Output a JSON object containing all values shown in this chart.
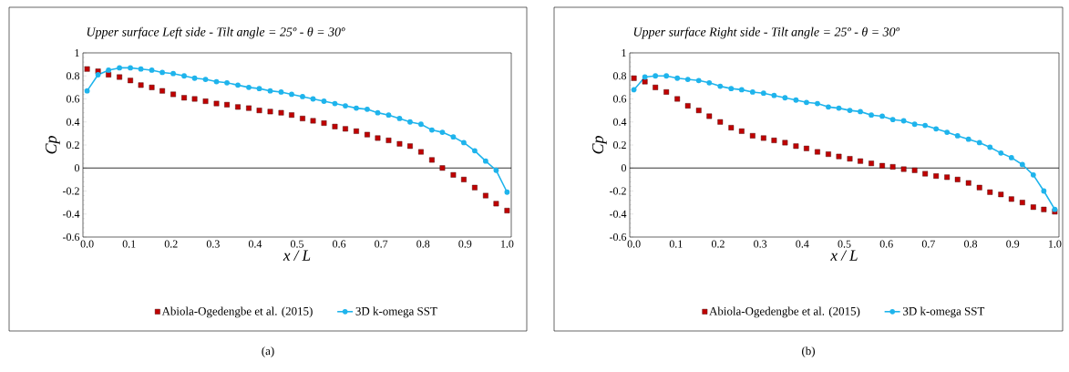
{
  "chart_data": [
    {
      "type": "line",
      "title": "Upper surface Left side - Tilt angle = 25º - θ = 30º",
      "xlabel": "x / L",
      "ylabel": "Cp",
      "annotations": [
        "(a)"
      ],
      "legend": "bottom",
      "xlim": [
        -0.01,
        1.01
      ],
      "ylim": [
        -0.6,
        1
      ],
      "xticks": [
        {
          "value": 0,
          "label": "0.0"
        },
        {
          "value": 0.1,
          "label": "0.1"
        },
        {
          "value": 0.2,
          "label": "0.2"
        },
        {
          "value": 0.3,
          "label": "0.3"
        },
        {
          "value": 0.4,
          "label": "0.4"
        },
        {
          "value": 0.5,
          "label": "0.5"
        },
        {
          "value": 0.6,
          "label": "0.6"
        },
        {
          "value": 0.7,
          "label": "0.7"
        },
        {
          "value": 0.8,
          "label": "0.8"
        },
        {
          "value": 0.9,
          "label": "0.9"
        },
        {
          "value": 1,
          "label": "1.0"
        }
      ],
      "yticks": [
        -0.6,
        -0.4,
        -0.2,
        0,
        0.2,
        0.4,
        0.6,
        0.8,
        1
      ],
      "x": [
        0,
        0.026,
        0.051,
        0.077,
        0.103,
        0.128,
        0.154,
        0.179,
        0.205,
        0.231,
        0.256,
        0.282,
        0.308,
        0.333,
        0.359,
        0.385,
        0.41,
        0.436,
        0.462,
        0.487,
        0.513,
        0.538,
        0.564,
        0.59,
        0.615,
        0.641,
        0.667,
        0.692,
        0.718,
        0.744,
        0.769,
        0.795,
        0.821,
        0.846,
        0.872,
        0.897,
        0.923,
        0.949,
        0.974,
        1.0
      ],
      "series": [
        {
          "name": "Abiola-Ogedengbe et al. (2015)",
          "type": "scatter",
          "marker": "square",
          "color": "#c00000",
          "values": [
            0.86,
            0.84,
            0.81,
            0.79,
            0.76,
            0.72,
            0.7,
            0.67,
            0.64,
            0.61,
            0.6,
            0.58,
            0.56,
            0.55,
            0.53,
            0.52,
            0.5,
            0.49,
            0.48,
            0.46,
            0.43,
            0.41,
            0.39,
            0.36,
            0.34,
            0.32,
            0.29,
            0.26,
            0.24,
            0.21,
            0.19,
            0.14,
            0.07,
            0.0,
            -0.06,
            -0.1,
            -0.17,
            -0.24,
            -0.31,
            -0.37
          ]
        },
        {
          "name": "3D k-omega SST",
          "marker": "circle",
          "color": "#1fb4ec",
          "values": [
            0.67,
            0.81,
            0.85,
            0.87,
            0.87,
            0.86,
            0.85,
            0.83,
            0.82,
            0.8,
            0.78,
            0.77,
            0.75,
            0.74,
            0.72,
            0.7,
            0.69,
            0.67,
            0.66,
            0.64,
            0.62,
            0.6,
            0.58,
            0.56,
            0.54,
            0.52,
            0.51,
            0.48,
            0.46,
            0.43,
            0.4,
            0.38,
            0.33,
            0.31,
            0.27,
            0.22,
            0.15,
            0.06,
            -0.02,
            -0.21
          ]
        }
      ]
    },
    {
      "type": "line",
      "title": "Upper surface Right side - Tilt angle = 25º - θ = 30º",
      "xlabel": "x / L",
      "ylabel": "Cp",
      "annotations": [
        "(b)"
      ],
      "legend": "bottom",
      "xlim": [
        -0.01,
        1.01
      ],
      "ylim": [
        -0.6,
        1
      ],
      "xticks": [
        {
          "value": 0,
          "label": "0.0"
        },
        {
          "value": 0.1,
          "label": "0.1"
        },
        {
          "value": 0.2,
          "label": "0.2"
        },
        {
          "value": 0.3,
          "label": "0.3"
        },
        {
          "value": 0.4,
          "label": "0.4"
        },
        {
          "value": 0.5,
          "label": "0.5"
        },
        {
          "value": 0.6,
          "label": "0.6"
        },
        {
          "value": 0.7,
          "label": "0.7"
        },
        {
          "value": 0.8,
          "label": "0.8"
        },
        {
          "value": 0.9,
          "label": "0.9"
        },
        {
          "value": 1,
          "label": "1.0"
        }
      ],
      "yticks": [
        -0.6,
        -0.4,
        -0.2,
        0,
        0.2,
        0.4,
        0.6,
        0.8,
        1
      ],
      "x": [
        0,
        0.026,
        0.051,
        0.077,
        0.103,
        0.128,
        0.154,
        0.179,
        0.205,
        0.231,
        0.256,
        0.282,
        0.308,
        0.333,
        0.359,
        0.385,
        0.41,
        0.436,
        0.462,
        0.487,
        0.513,
        0.538,
        0.564,
        0.59,
        0.615,
        0.641,
        0.667,
        0.692,
        0.718,
        0.744,
        0.769,
        0.795,
        0.821,
        0.846,
        0.872,
        0.897,
        0.923,
        0.949,
        0.974,
        1.0
      ],
      "series": [
        {
          "name": "Abiola-Ogedengbe et al. (2015)",
          "type": "scatter",
          "marker": "square",
          "color": "#c00000",
          "values": [
            0.78,
            0.75,
            0.7,
            0.66,
            0.6,
            0.54,
            0.5,
            0.45,
            0.4,
            0.35,
            0.32,
            0.28,
            0.26,
            0.24,
            0.22,
            0.19,
            0.17,
            0.14,
            0.12,
            0.1,
            0.08,
            0.06,
            0.04,
            0.02,
            0.01,
            -0.01,
            -0.02,
            -0.05,
            -0.07,
            -0.08,
            -0.1,
            -0.13,
            -0.17,
            -0.21,
            -0.23,
            -0.27,
            -0.3,
            -0.34,
            -0.36,
            -0.38
          ]
        },
        {
          "name": "3D k-omega SST",
          "marker": "circle",
          "color": "#1fb4ec",
          "values": [
            0.68,
            0.79,
            0.8,
            0.8,
            0.78,
            0.77,
            0.76,
            0.74,
            0.71,
            0.69,
            0.68,
            0.66,
            0.65,
            0.63,
            0.61,
            0.59,
            0.57,
            0.56,
            0.53,
            0.52,
            0.5,
            0.49,
            0.46,
            0.45,
            0.42,
            0.41,
            0.38,
            0.37,
            0.34,
            0.31,
            0.28,
            0.25,
            0.22,
            0.18,
            0.13,
            0.09,
            0.03,
            -0.06,
            -0.2,
            -0.36
          ]
        }
      ]
    }
  ]
}
